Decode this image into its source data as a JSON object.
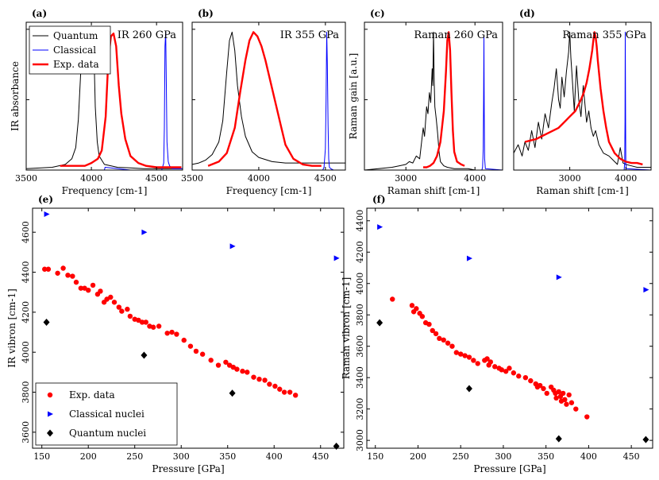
{
  "chart_data": [
    {
      "type": "line",
      "panel_label": "(a)",
      "title": "IR 260 GPa",
      "xlabel": "Frequency [cm-1]",
      "ylabel": "IR absorbance",
      "xlim": [
        3500,
        4700
      ],
      "ylim": [
        0,
        1.05
      ],
      "xticks": [
        3500,
        4000,
        4500
      ],
      "legend": {
        "position": "top-left",
        "entries": [
          "Quantum",
          "Classical",
          "Exp. data"
        ]
      },
      "series": [
        {
          "name": "Quantum",
          "color": "#000000",
          "x": [
            3500,
            3700,
            3800,
            3850,
            3880,
            3900,
            3920,
            3940,
            3950,
            3960,
            3970,
            3980,
            3990,
            4000,
            4010,
            4020,
            4030,
            4045,
            4060,
            4100,
            4200,
            4300,
            4400,
            4500,
            4600,
            4700
          ],
          "y": [
            0.01,
            0.02,
            0.04,
            0.08,
            0.16,
            0.36,
            0.72,
            0.93,
            0.9,
            0.96,
            0.98,
            0.93,
            0.7,
            0.72,
            0.93,
            0.82,
            0.45,
            0.2,
            0.1,
            0.04,
            0.02,
            0.015,
            0.01,
            0.01,
            0.01,
            0.01
          ]
        },
        {
          "name": "Classical",
          "color": "#0000ff",
          "x": [
            3500,
            4100,
            4105,
            4300,
            4540,
            4555,
            4560,
            4565,
            4570,
            4575,
            4580,
            4590,
            4600,
            4620,
            4700
          ],
          "y": [
            0,
            0,
            0.02,
            0,
            0,
            0.05,
            0.3,
            0.88,
            0.98,
            0.6,
            0.2,
            0.06,
            0.03,
            0.01,
            0.01
          ]
        },
        {
          "name": "Exp. data",
          "color": "#ff0000",
          "x": [
            3760,
            3850,
            3950,
            4000,
            4050,
            4080,
            4110,
            4130,
            4150,
            4170,
            4190,
            4210,
            4230,
            4260,
            4300,
            4360,
            4420,
            4500,
            4560,
            4620,
            4690
          ],
          "y": [
            0.03,
            0.03,
            0.03,
            0.05,
            0.08,
            0.14,
            0.38,
            0.78,
            0.95,
            0.97,
            0.88,
            0.6,
            0.4,
            0.22,
            0.1,
            0.05,
            0.03,
            0.02,
            0.02,
            0.02,
            0.02
          ]
        }
      ]
    },
    {
      "type": "line",
      "panel_label": "(b)",
      "title": "IR 355 GPa",
      "xlabel": "Frequency [cm-1]",
      "ylabel": "",
      "xlim": [
        3500,
        4650
      ],
      "ylim": [
        0,
        1.05
      ],
      "xticks": [
        3500,
        4000,
        4500
      ],
      "series": [
        {
          "name": "Quantum",
          "color": "#000000",
          "x": [
            3500,
            3550,
            3600,
            3650,
            3700,
            3730,
            3760,
            3780,
            3800,
            3820,
            3840,
            3870,
            3900,
            3950,
            4000,
            4100,
            4200,
            4300,
            4400,
            4500,
            4650
          ],
          "y": [
            0.04,
            0.05,
            0.07,
            0.11,
            0.2,
            0.35,
            0.7,
            0.92,
            0.98,
            0.85,
            0.6,
            0.38,
            0.24,
            0.13,
            0.09,
            0.06,
            0.05,
            0.05,
            0.05,
            0.05,
            0.05
          ]
        },
        {
          "name": "Classical",
          "color": "#0000ff",
          "x": [
            3500,
            4480,
            4490,
            4500,
            4505,
            4510,
            4515,
            4520,
            4525,
            4530,
            4540,
            4560,
            4650
          ],
          "y": [
            0,
            0,
            0.02,
            0.15,
            0.5,
            0.98,
            0.75,
            0.32,
            0.08,
            0.02,
            0.01,
            0,
            0
          ]
        },
        {
          "name": "Exp. data",
          "color": "#ff0000",
          "x": [
            3620,
            3700,
            3760,
            3820,
            3860,
            3900,
            3930,
            3960,
            3990,
            4020,
            4050,
            4090,
            4130,
            4170,
            4200,
            4260,
            4330,
            4400,
            4470
          ],
          "y": [
            0.03,
            0.06,
            0.12,
            0.3,
            0.55,
            0.78,
            0.92,
            0.98,
            0.95,
            0.88,
            0.78,
            0.62,
            0.46,
            0.3,
            0.18,
            0.08,
            0.04,
            0.03,
            0.03
          ]
        }
      ]
    },
    {
      "type": "line",
      "panel_label": "(c)",
      "title": "Raman 260 GPa",
      "xlabel": "Raman shift [cm-1]",
      "ylabel": "Raman gain [a.u.]",
      "xlim": [
        2400,
        4400
      ],
      "ylim": [
        0,
        1.05
      ],
      "xticks": [
        3000,
        4000
      ],
      "series": [
        {
          "name": "Quantum",
          "color": "#000000",
          "x": [
            2400,
            2600,
            2800,
            2900,
            3000,
            3050,
            3100,
            3150,
            3200,
            3250,
            3270,
            3300,
            3320,
            3340,
            3360,
            3380,
            3390,
            3400,
            3410,
            3420,
            3440,
            3460,
            3480,
            3500,
            3550,
            3600,
            3700,
            3800,
            3900,
            4000,
            4200,
            4400
          ],
          "y": [
            0,
            0.01,
            0.02,
            0.03,
            0.04,
            0.06,
            0.05,
            0.1,
            0.08,
            0.3,
            0.24,
            0.45,
            0.4,
            0.55,
            0.48,
            0.72,
            0.6,
            0.98,
            0.62,
            0.45,
            0.36,
            0.26,
            0.13,
            0.06,
            0.03,
            0.02,
            0.01,
            0.01,
            0.01,
            0,
            0,
            0
          ]
        },
        {
          "name": "Classical",
          "color": "#0000ff",
          "x": [
            2400,
            4100,
            4110,
            4120,
            4125,
            4130,
            4135,
            4140,
            4150,
            4400
          ],
          "y": [
            0,
            0,
            0.02,
            0.15,
            0.5,
            0.95,
            0.4,
            0.08,
            0.01,
            0
          ]
        },
        {
          "name": "Exp. data",
          "color": "#ff0000",
          "x": [
            3250,
            3300,
            3350,
            3400,
            3450,
            3500,
            3550,
            3580,
            3600,
            3620,
            3640,
            3660,
            3680,
            3700,
            3740,
            3800,
            3850
          ],
          "y": [
            0.02,
            0.02,
            0.03,
            0.05,
            0.1,
            0.2,
            0.42,
            0.7,
            0.92,
            0.98,
            0.85,
            0.55,
            0.28,
            0.13,
            0.06,
            0.04,
            0.03
          ]
        }
      ]
    },
    {
      "type": "line",
      "panel_label": "(d)",
      "title": "Raman 355 GPa",
      "xlabel": "Raman shift [cm-1]",
      "ylabel": "",
      "xlim": [
        2000,
        4450
      ],
      "ylim": [
        0,
        1.05
      ],
      "xticks": [
        3000,
        4000
      ],
      "series": [
        {
          "name": "Quantum",
          "color": "#000000",
          "x": [
            2000,
            2080,
            2150,
            2200,
            2260,
            2320,
            2380,
            2440,
            2500,
            2560,
            2620,
            2680,
            2720,
            2760,
            2800,
            2830,
            2860,
            2900,
            2940,
            2980,
            3000,
            3020,
            3050,
            3080,
            3120,
            3160,
            3200,
            3240,
            3300,
            3340,
            3380,
            3420,
            3460,
            3520,
            3600,
            3700,
            3800,
            3850,
            3900,
            3950,
            4000,
            4100,
            4200,
            4300,
            4450
          ],
          "y": [
            0.12,
            0.18,
            0.1,
            0.2,
            0.14,
            0.28,
            0.16,
            0.34,
            0.22,
            0.4,
            0.3,
            0.48,
            0.58,
            0.72,
            0.5,
            0.44,
            0.66,
            0.52,
            0.7,
            0.84,
            0.98,
            0.8,
            0.62,
            0.42,
            0.74,
            0.5,
            0.38,
            0.6,
            0.34,
            0.42,
            0.3,
            0.24,
            0.28,
            0.18,
            0.12,
            0.1,
            0.06,
            0.04,
            0.16,
            0.05,
            0.04,
            0.03,
            0.02,
            0.02,
            0.02
          ]
        },
        {
          "name": "Classical",
          "color": "#0000ff",
          "x": [
            2000,
            3970,
            3980,
            3985,
            3990,
            3995,
            4000,
            4010,
            4450
          ],
          "y": [
            0,
            0,
            0.05,
            0.35,
            0.98,
            0.4,
            0.05,
            0.01,
            0
          ]
        },
        {
          "name": "Exp. data",
          "color": "#ff0000",
          "x": [
            2200,
            2400,
            2600,
            2800,
            2900,
            3000,
            3100,
            3200,
            3250,
            3300,
            3350,
            3400,
            3420,
            3440,
            3460,
            3480,
            3500,
            3550,
            3600,
            3650,
            3700,
            3800,
            3900,
            4000,
            4100,
            4200,
            4300
          ],
          "y": [
            0.2,
            0.22,
            0.26,
            0.3,
            0.34,
            0.38,
            0.42,
            0.5,
            0.55,
            0.62,
            0.72,
            0.85,
            0.92,
            0.98,
            0.95,
            0.88,
            0.78,
            0.58,
            0.42,
            0.3,
            0.2,
            0.12,
            0.08,
            0.06,
            0.05,
            0.05,
            0.04
          ]
        }
      ]
    },
    {
      "type": "scatter",
      "panel_label": "(e)",
      "title": "",
      "xlabel": "Pressure [GPa]",
      "ylabel": "IR vibron [cm-1]",
      "xlim": [
        140,
        475
      ],
      "ylim": [
        3520,
        4720
      ],
      "xticks": [
        150,
        200,
        250,
        300,
        350,
        400,
        450
      ],
      "yticks": [
        3600,
        3800,
        4000,
        4200,
        4400,
        4600
      ],
      "legend": {
        "position": "bottom-left",
        "entries": [
          "Exp. data",
          "Classical nuclei",
          "Quantum nuclei"
        ]
      },
      "series": [
        {
          "name": "Exp. data",
          "marker": "circle",
          "color": "#ff0000",
          "x": [
            153,
            157,
            167,
            173,
            178,
            183,
            187,
            192,
            196,
            200,
            205,
            210,
            213,
            217,
            220,
            224,
            228,
            233,
            236,
            242,
            245,
            250,
            254,
            258,
            262,
            266,
            270,
            276,
            285,
            290,
            295,
            303,
            310,
            316,
            323,
            332,
            340,
            348,
            352,
            356,
            360,
            366,
            371,
            378,
            384,
            390,
            395,
            401,
            406,
            411,
            417,
            423
          ],
          "y": [
            4415,
            4415,
            4395,
            4420,
            4385,
            4380,
            4350,
            4320,
            4320,
            4310,
            4335,
            4290,
            4305,
            4250,
            4265,
            4275,
            4250,
            4225,
            4205,
            4215,
            4180,
            4165,
            4160,
            4150,
            4150,
            4130,
            4125,
            4130,
            4095,
            4100,
            4090,
            4060,
            4030,
            4005,
            3990,
            3960,
            3935,
            3950,
            3935,
            3925,
            3915,
            3905,
            3900,
            3875,
            3865,
            3860,
            3840,
            3830,
            3815,
            3800,
            3800,
            3785
          ]
        },
        {
          "name": "Classical nuclei",
          "marker": "triangle-right",
          "color": "#0000ff",
          "x": [
            155,
            260,
            355,
            467
          ],
          "y": [
            4690,
            4600,
            4530,
            4470
          ]
        },
        {
          "name": "Quantum nuclei",
          "marker": "diamond",
          "color": "#000000",
          "x": [
            155,
            260,
            355,
            467
          ],
          "y": [
            4150,
            3985,
            3795,
            3530
          ]
        }
      ]
    },
    {
      "type": "scatter",
      "panel_label": "(f)",
      "title": "",
      "xlabel": "Pressure [GPa]",
      "ylabel": "Raman vibron [cm-1]",
      "xlim": [
        140,
        475
      ],
      "ylim": [
        2950,
        4480
      ],
      "xticks": [
        150,
        200,
        250,
        300,
        350,
        400,
        450
      ],
      "yticks": [
        3000,
        3200,
        3400,
        3600,
        3800,
        4000,
        4200,
        4400
      ],
      "series": [
        {
          "name": "Exp. data",
          "marker": "circle",
          "color": "#ff0000",
          "x": [
            170,
            193,
            195,
            198,
            202,
            205,
            209,
            213,
            217,
            221,
            225,
            230,
            235,
            240,
            245,
            250,
            255,
            260,
            265,
            270,
            278,
            281,
            283,
            285,
            290,
            295,
            298,
            303,
            307,
            312,
            318,
            326,
            332,
            338,
            340,
            343,
            347,
            351,
            356,
            359,
            361,
            362,
            365,
            367,
            368,
            370,
            372,
            374,
            377,
            380,
            385,
            398
          ],
          "y": [
            3900,
            3860,
            3820,
            3840,
            3810,
            3790,
            3750,
            3740,
            3700,
            3680,
            3650,
            3640,
            3620,
            3600,
            3560,
            3550,
            3540,
            3530,
            3510,
            3490,
            3510,
            3520,
            3480,
            3500,
            3470,
            3460,
            3450,
            3440,
            3460,
            3430,
            3410,
            3400,
            3380,
            3360,
            3340,
            3350,
            3330,
            3300,
            3340,
            3320,
            3300,
            3270,
            3310,
            3280,
            3250,
            3300,
            3260,
            3230,
            3290,
            3240,
            3200,
            3150
          ]
        },
        {
          "name": "Classical nuclei",
          "marker": "triangle-right",
          "color": "#0000ff",
          "x": [
            155,
            260,
            365,
            467
          ],
          "y": [
            4360,
            4160,
            4040,
            3960
          ]
        },
        {
          "name": "Quantum nuclei",
          "marker": "diamond",
          "color": "#000000",
          "x": [
            155,
            260,
            365,
            467
          ],
          "y": [
            3750,
            3330,
            3010,
            3005
          ]
        }
      ]
    }
  ]
}
